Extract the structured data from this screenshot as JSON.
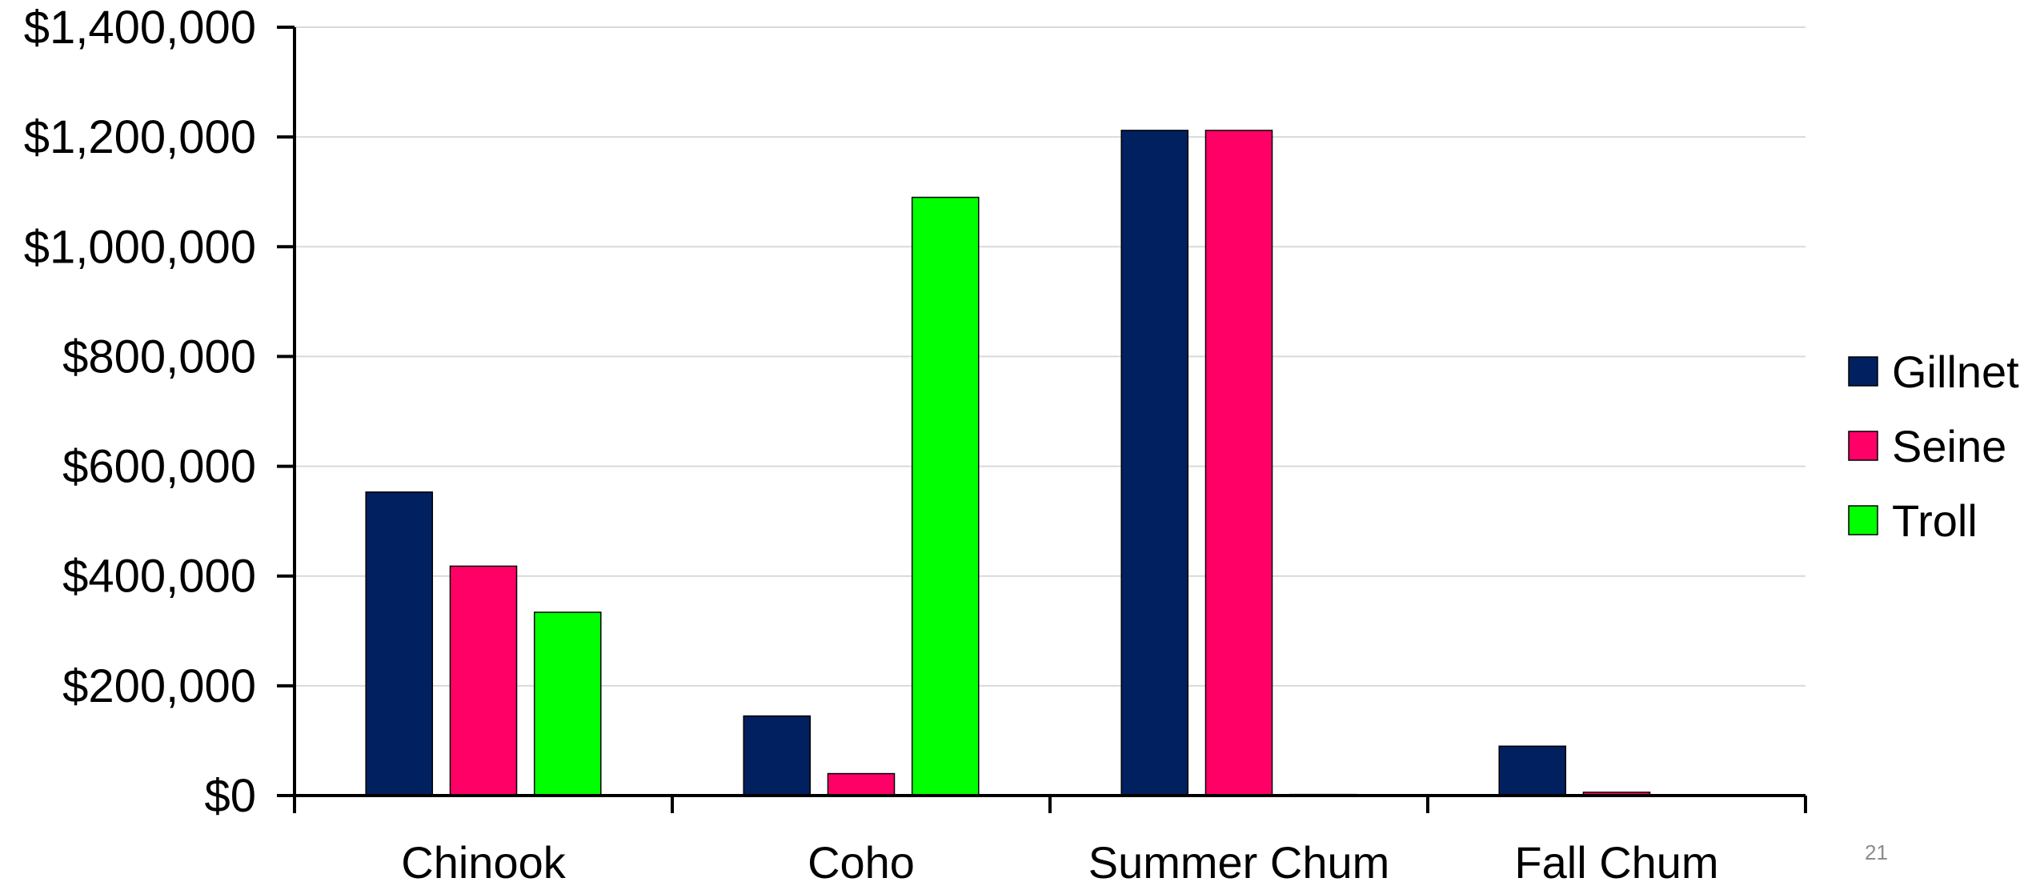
{
  "chart_data": {
    "type": "bar",
    "title": "",
    "xlabel": "",
    "ylabel": "",
    "categories": [
      "Chinook",
      "Coho",
      "Summer Chum",
      "Fall Chum"
    ],
    "series": [
      {
        "name": "Gillnet",
        "color": "#002060",
        "values": [
          553000,
          145000,
          1212000,
          90000
        ]
      },
      {
        "name": "Seine",
        "color": "#FF0066",
        "values": [
          418000,
          40000,
          1212000,
          6000
        ]
      },
      {
        "name": "Troll",
        "color": "#00FF00",
        "values": [
          334000,
          1090000,
          2000,
          0
        ]
      }
    ],
    "ylim": [
      0,
      1400000
    ],
    "yticks": [
      0,
      200000,
      400000,
      600000,
      800000,
      1000000,
      1200000,
      1400000
    ],
    "ytick_labels": [
      "$0",
      "$200,000",
      "$400,000",
      "$600,000",
      "$800,000",
      "$1,000,000",
      "$1,200,000",
      "$1,400,000"
    ],
    "grid": true,
    "legend_position": "right"
  },
  "page_number": "21"
}
